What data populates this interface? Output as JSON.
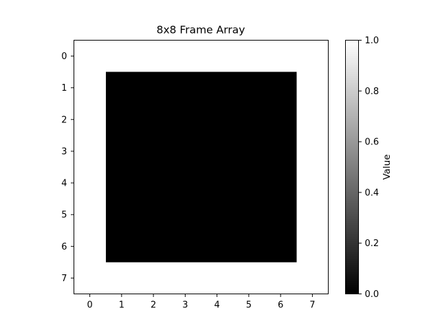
{
  "chart_data": {
    "type": "heatmap",
    "title": "8x8 Frame Array",
    "xlabel": "",
    "ylabel": "",
    "x_ticks": [
      0,
      1,
      2,
      3,
      4,
      5,
      6,
      7
    ],
    "y_ticks": [
      0,
      1,
      2,
      3,
      4,
      5,
      6,
      7
    ],
    "x_tick_labels": [
      "0",
      "1",
      "2",
      "3",
      "4",
      "5",
      "6",
      "7"
    ],
    "y_tick_labels": [
      "0",
      "1",
      "2",
      "3",
      "4",
      "5",
      "6",
      "7"
    ],
    "y_axis_inverted": true,
    "colormap": "gray",
    "vmin": 0.0,
    "vmax": 1.0,
    "values": [
      [
        1,
        1,
        1,
        1,
        1,
        1,
        1,
        1
      ],
      [
        1,
        0,
        0,
        0,
        0,
        0,
        0,
        1
      ],
      [
        1,
        0,
        0,
        0,
        0,
        0,
        0,
        1
      ],
      [
        1,
        0,
        0,
        0,
        0,
        0,
        0,
        1
      ],
      [
        1,
        0,
        0,
        0,
        0,
        0,
        0,
        1
      ],
      [
        1,
        0,
        0,
        0,
        0,
        0,
        0,
        1
      ],
      [
        1,
        0,
        0,
        0,
        0,
        0,
        0,
        1
      ],
      [
        1,
        1,
        1,
        1,
        1,
        1,
        1,
        1
      ]
    ],
    "colorbar": {
      "label": "Value",
      "ticks": [
        0.0,
        0.2,
        0.4,
        0.6,
        0.8,
        1.0
      ],
      "tick_labels": [
        "0.0",
        "0.2",
        "0.4",
        "0.6",
        "0.8",
        "1.0"
      ]
    },
    "grid": false
  }
}
